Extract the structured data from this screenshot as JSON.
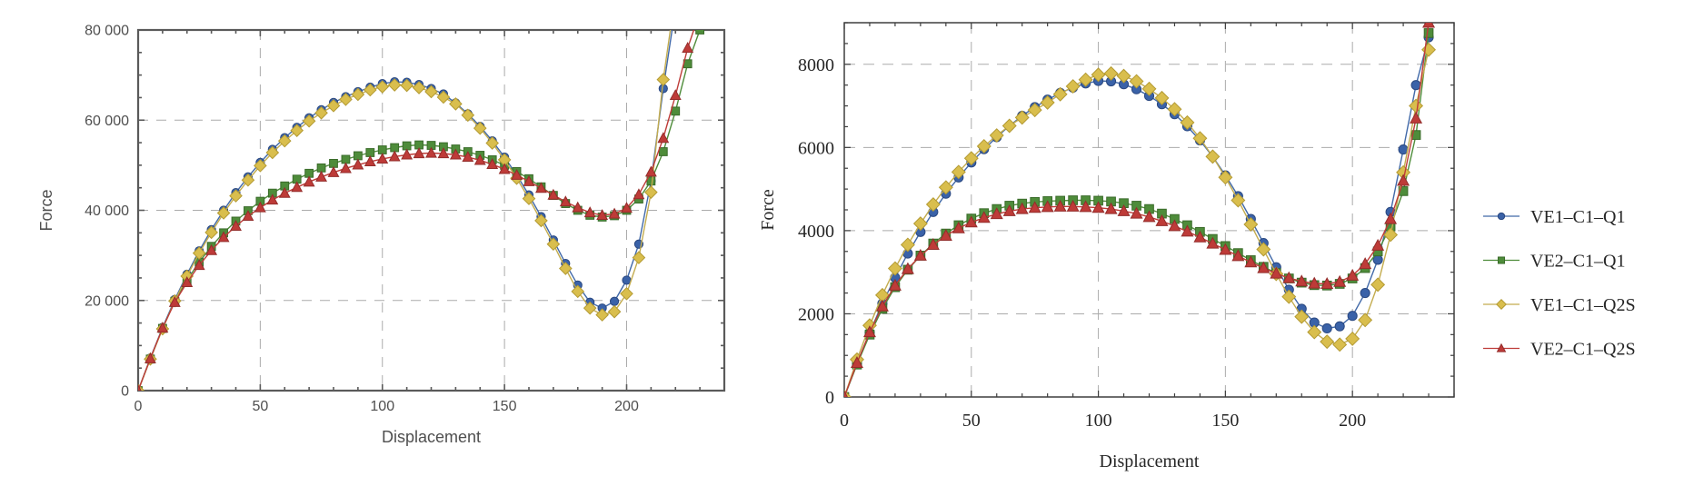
{
  "figure": {
    "background": "#ffffff",
    "grid_color": "#ababab",
    "left_frame_color": "#5a5a5a",
    "right_frame_color": "#3e3e3e",
    "left_text_color": "#4f4f4f",
    "right_text_color": "#262626",
    "legend_text_color": "#262626"
  },
  "legend": {
    "position": "right-outside",
    "items": [
      {
        "label": "VE1–C1–Q1",
        "series": "VE1-C1-Q1"
      },
      {
        "label": "VE2–C1–Q1",
        "series": "VE2-C1-Q1"
      },
      {
        "label": "VE1–C1–Q2S",
        "series": "VE1-C1-Q2S"
      },
      {
        "label": "VE2–C1–Q2S",
        "series": "VE2-C1-Q2S"
      }
    ]
  },
  "chart_data": [
    {
      "id": "left",
      "type": "line",
      "title": "",
      "xlabel": "Displacement",
      "ylabel": "Force",
      "xlim": [
        0,
        240
      ],
      "ylim": [
        0,
        80000
      ],
      "grid": true,
      "font_style": "sans",
      "xtick_values": [
        0,
        50,
        100,
        150,
        200
      ],
      "xtick_labels": [
        "0",
        "50",
        "100",
        "150",
        "200"
      ],
      "ytick_values": [
        0,
        20000,
        40000,
        60000,
        80000
      ],
      "ytick_labels": [
        "0",
        "20 000",
        "40 000",
        "60 000",
        "80 000"
      ],
      "x_minor_step": 10,
      "y_minor_step": 5000,
      "x": [
        0,
        5,
        10,
        15,
        20,
        25,
        30,
        35,
        40,
        45,
        50,
        55,
        60,
        65,
        70,
        75,
        80,
        85,
        90,
        95,
        100,
        105,
        110,
        115,
        120,
        125,
        130,
        135,
        140,
        145,
        150,
        155,
        160,
        165,
        170,
        175,
        180,
        185,
        190,
        195,
        200,
        205,
        210,
        215,
        220,
        225,
        230
      ],
      "series": [
        {
          "name": "VE1-C1-Q1",
          "marker": "circle",
          "color": "#3a62a8",
          "edge": "#2a4880",
          "line": "#4169a8",
          "values": [
            0,
            7200,
            14000,
            20200,
            25800,
            31000,
            35700,
            40000,
            43900,
            47400,
            50600,
            53500,
            56100,
            58400,
            60500,
            62300,
            63900,
            65200,
            66300,
            67300,
            68100,
            68500,
            68400,
            67900,
            67000,
            65800,
            63800,
            61400,
            58600,
            55400,
            51800,
            47800,
            43400,
            38600,
            33400,
            28200,
            23400,
            19600,
            18300,
            19800,
            24500,
            32500,
            46500,
            67000,
            85000,
            null,
            null
          ]
        },
        {
          "name": "VE2-C1-Q1",
          "marker": "square",
          "color": "#4e8c3a",
          "edge": "#3a6b2a",
          "line": "#4e8c3a",
          "values": [
            0,
            7000,
            13800,
            19800,
            24500,
            28500,
            32000,
            35000,
            37600,
            39900,
            42000,
            43800,
            45400,
            46900,
            48200,
            49400,
            50400,
            51300,
            52100,
            52800,
            53400,
            53900,
            54300,
            54500,
            54400,
            54100,
            53600,
            53000,
            52200,
            51200,
            50000,
            48600,
            47000,
            45200,
            43300,
            41500,
            40000,
            38900,
            38500,
            38800,
            40000,
            42500,
            46500,
            53000,
            62000,
            72500,
            80000
          ]
        },
        {
          "name": "VE1-C1-Q2S",
          "marker": "diamond",
          "color": "#d9be4d",
          "edge": "#b39a33",
          "line": "#c3ac4f",
          "values": [
            0,
            7000,
            13700,
            19900,
            25400,
            30500,
            35100,
            39400,
            43200,
            46700,
            49900,
            52800,
            55400,
            57700,
            59800,
            61600,
            63200,
            64600,
            65700,
            66700,
            67400,
            67800,
            67700,
            67200,
            66300,
            65100,
            63600,
            61100,
            58200,
            54900,
            51200,
            47100,
            42600,
            37700,
            32500,
            27100,
            22000,
            18300,
            16800,
            17500,
            21500,
            29500,
            44000,
            69000,
            88000,
            null,
            null
          ]
        },
        {
          "name": "VE2-C1-Q2S",
          "marker": "triangle",
          "color": "#be3b38",
          "edge": "#932d2b",
          "line": "#be3b38",
          "values": [
            0,
            7100,
            13900,
            19600,
            24000,
            27800,
            31100,
            34000,
            36500,
            38700,
            40600,
            42300,
            43800,
            45100,
            46300,
            47400,
            48400,
            49300,
            50100,
            50800,
            51400,
            51900,
            52300,
            52600,
            52700,
            52600,
            52300,
            51800,
            51100,
            50200,
            49100,
            47800,
            46400,
            44900,
            43400,
            41900,
            40600,
            39500,
            38900,
            39200,
            40500,
            43500,
            48500,
            56000,
            65500,
            76000,
            84000
          ]
        }
      ]
    },
    {
      "id": "right",
      "type": "line",
      "title": "",
      "xlabel": "Displacement",
      "ylabel": "Force",
      "xlim": [
        0,
        240
      ],
      "ylim": [
        0,
        9000
      ],
      "grid": true,
      "font_style": "serif",
      "xtick_values": [
        0,
        50,
        100,
        150,
        200
      ],
      "xtick_labels": [
        "0",
        "50",
        "100",
        "150",
        "200"
      ],
      "ytick_values": [
        0,
        2000,
        4000,
        6000,
        8000
      ],
      "ytick_labels": [
        "0",
        "2000",
        "4000",
        "6000",
        "8000"
      ],
      "x_minor_step": 10,
      "y_minor_step": 500,
      "x": [
        0,
        5,
        10,
        15,
        20,
        25,
        30,
        35,
        40,
        45,
        50,
        55,
        60,
        65,
        70,
        75,
        80,
        85,
        90,
        95,
        100,
        105,
        110,
        115,
        120,
        125,
        130,
        135,
        140,
        145,
        150,
        155,
        160,
        165,
        170,
        175,
        180,
        185,
        190,
        195,
        200,
        205,
        210,
        215,
        220,
        225,
        230
      ],
      "series": [
        {
          "name": "VE1-C1-Q1",
          "marker": "circle",
          "color": "#3a62a8",
          "edge": "#2a4880",
          "line": "#4169a8",
          "values": [
            0,
            800,
            1550,
            2250,
            2870,
            3450,
            3970,
            4450,
            4890,
            5280,
            5640,
            5960,
            6250,
            6520,
            6760,
            6970,
            7150,
            7310,
            7440,
            7540,
            7600,
            7590,
            7520,
            7400,
            7240,
            7040,
            6800,
            6510,
            6170,
            5780,
            5330,
            4830,
            4280,
            3700,
            3120,
            2580,
            2120,
            1790,
            1650,
            1700,
            1950,
            2500,
            3300,
            4450,
            5950,
            7500,
            8650
          ]
        },
        {
          "name": "VE2-C1-Q1",
          "marker": "square",
          "color": "#4e8c3a",
          "edge": "#3a6b2a",
          "line": "#4e8c3a",
          "values": [
            0,
            780,
            1500,
            2120,
            2640,
            3060,
            3400,
            3690,
            3930,
            4130,
            4290,
            4420,
            4520,
            4600,
            4650,
            4690,
            4710,
            4720,
            4730,
            4730,
            4720,
            4700,
            4660,
            4600,
            4520,
            4410,
            4280,
            4130,
            3970,
            3800,
            3630,
            3460,
            3290,
            3130,
            2980,
            2850,
            2750,
            2690,
            2680,
            2720,
            2850,
            3100,
            3500,
            4100,
            4950,
            6300,
            8750
          ]
        },
        {
          "name": "VE1-C1-Q2S",
          "marker": "diamond",
          "color": "#d9be4d",
          "edge": "#b39a33",
          "line": "#c3ac4f",
          "values": [
            0,
            900,
            1720,
            2450,
            3090,
            3660,
            4170,
            4630,
            5040,
            5410,
            5740,
            6030,
            6290,
            6520,
            6720,
            6900,
            7080,
            7280,
            7470,
            7630,
            7750,
            7780,
            7720,
            7590,
            7410,
            7190,
            6920,
            6600,
            6220,
            5780,
            5280,
            4730,
            4150,
            3550,
            2960,
            2410,
            1930,
            1560,
            1330,
            1260,
            1400,
            1850,
            2700,
            3900,
            5400,
            7000,
            8350
          ]
        },
        {
          "name": "VE2-C1-Q2S",
          "marker": "triangle",
          "color": "#be3b38",
          "edge": "#932d2b",
          "line": "#be3b38",
          "values": [
            0,
            820,
            1560,
            2180,
            2680,
            3080,
            3400,
            3660,
            3880,
            4060,
            4200,
            4310,
            4400,
            4470,
            4520,
            4550,
            4570,
            4580,
            4580,
            4570,
            4550,
            4520,
            4470,
            4410,
            4330,
            4230,
            4110,
            3980,
            3840,
            3690,
            3540,
            3390,
            3240,
            3100,
            2970,
            2860,
            2780,
            2730,
            2720,
            2770,
            2920,
            3200,
            3640,
            4280,
            5200,
            6700,
            9000
          ]
        }
      ]
    }
  ]
}
